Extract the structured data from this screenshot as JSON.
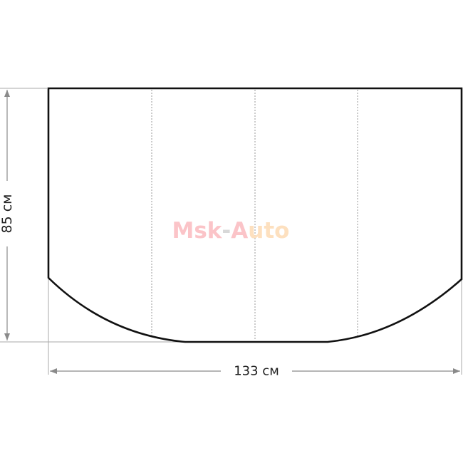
{
  "dimensions": {
    "height_label": "85 см",
    "width_label": "133 см"
  },
  "watermark": {
    "text": "Msk-Auto",
    "parts": [
      "Msk",
      "-",
      "A",
      "uto"
    ],
    "colors": [
      "#fbc4c8",
      "#d8d8d8",
      "#fbc4c8",
      "#fde0bf"
    ]
  },
  "colors": {
    "outline": "#111111",
    "dimension": "#8a8a8a",
    "fold_lines": "#9a9a9a"
  }
}
